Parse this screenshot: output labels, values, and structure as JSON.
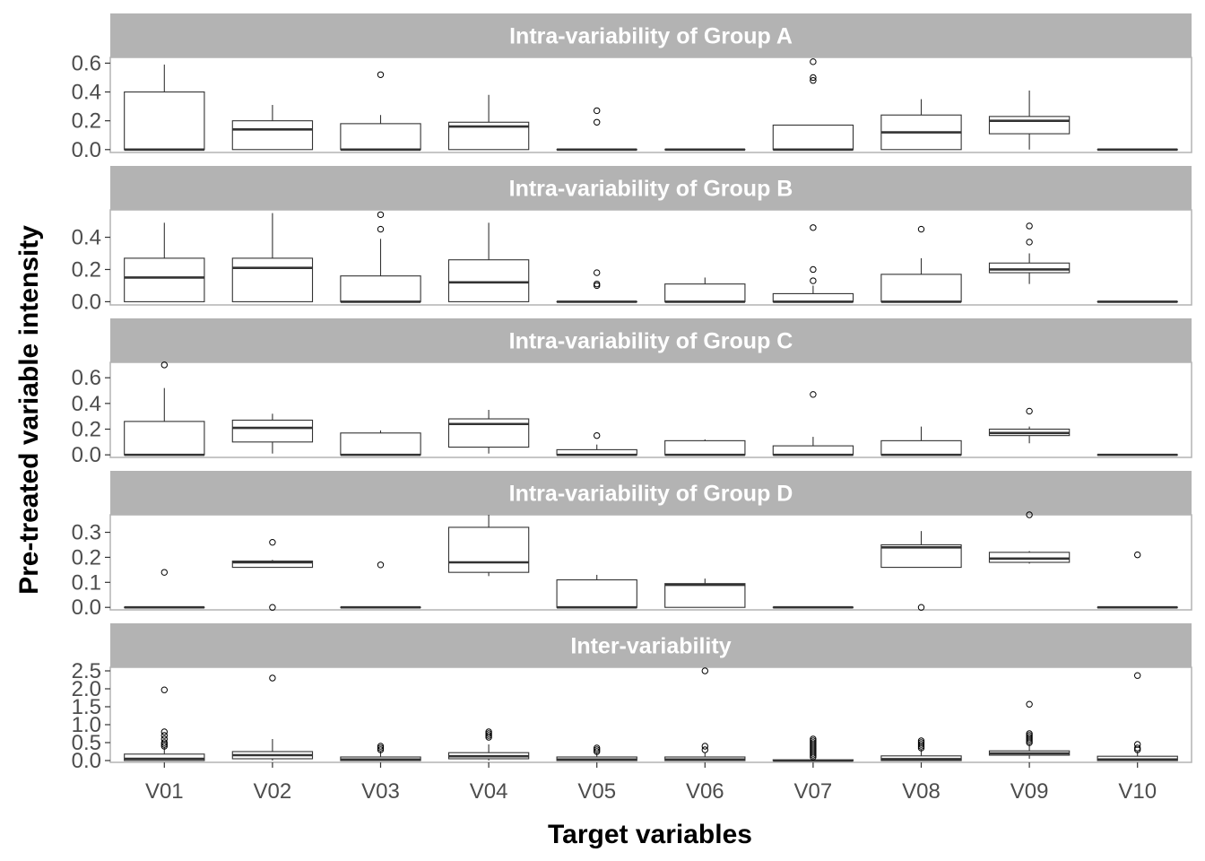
{
  "chart_data": {
    "type": "boxplot",
    "xlabel": "Target variables",
    "ylabel": "Pre-treated variable intensity",
    "categories": [
      "V01",
      "V02",
      "V03",
      "V04",
      "V05",
      "V06",
      "V07",
      "V08",
      "V09",
      "V10"
    ],
    "panels": [
      {
        "title": "Intra-variability of Group A",
        "ylim": [
          -0.02,
          0.64
        ],
        "yticks": [
          0.0,
          0.2,
          0.4,
          0.6
        ],
        "ytick_labels": [
          "0.0",
          "0.2",
          "0.4",
          "0.6"
        ],
        "boxes": [
          {
            "q1": 0.0,
            "median": 0.0,
            "q3": 0.4,
            "whisker_low": 0.0,
            "whisker_high": 0.59,
            "outliers": []
          },
          {
            "q1": 0.0,
            "median": 0.14,
            "q3": 0.2,
            "whisker_low": 0.0,
            "whisker_high": 0.31,
            "outliers": []
          },
          {
            "q1": 0.0,
            "median": 0.0,
            "q3": 0.18,
            "whisker_low": 0.0,
            "whisker_high": 0.24,
            "outliers": [
              0.52
            ]
          },
          {
            "q1": 0.0,
            "median": 0.16,
            "q3": 0.19,
            "whisker_low": 0.0,
            "whisker_high": 0.38,
            "outliers": []
          },
          {
            "q1": 0.0,
            "median": 0.0,
            "q3": 0.0,
            "whisker_low": 0.0,
            "whisker_high": 0.0,
            "outliers": [
              0.27,
              0.19
            ]
          },
          {
            "q1": 0.0,
            "median": 0.0,
            "q3": 0.0,
            "whisker_low": 0.0,
            "whisker_high": 0.0,
            "outliers": []
          },
          {
            "q1": 0.0,
            "median": 0.0,
            "q3": 0.17,
            "whisker_low": 0.0,
            "whisker_high": 0.17,
            "outliers": [
              0.61,
              0.5,
              0.48
            ]
          },
          {
            "q1": 0.0,
            "median": 0.12,
            "q3": 0.24,
            "whisker_low": 0.0,
            "whisker_high": 0.35,
            "outliers": []
          },
          {
            "q1": 0.11,
            "median": 0.2,
            "q3": 0.23,
            "whisker_low": 0.0,
            "whisker_high": 0.41,
            "outliers": []
          },
          {
            "q1": 0.0,
            "median": 0.0,
            "q3": 0.0,
            "whisker_low": 0.0,
            "whisker_high": 0.0,
            "outliers": []
          }
        ]
      },
      {
        "title": "Intra-variability of Group B",
        "ylim": [
          -0.02,
          0.57
        ],
        "yticks": [
          0.0,
          0.2,
          0.4
        ],
        "ytick_labels": [
          "0.0",
          "0.2",
          "0.4"
        ],
        "boxes": [
          {
            "q1": 0.0,
            "median": 0.15,
            "q3": 0.27,
            "whisker_low": 0.0,
            "whisker_high": 0.49,
            "outliers": []
          },
          {
            "q1": 0.0,
            "median": 0.21,
            "q3": 0.27,
            "whisker_low": 0.0,
            "whisker_high": 0.55,
            "outliers": []
          },
          {
            "q1": 0.0,
            "median": 0.0,
            "q3": 0.16,
            "whisker_low": 0.0,
            "whisker_high": 0.39,
            "outliers": [
              0.54,
              0.45
            ]
          },
          {
            "q1": 0.0,
            "median": 0.12,
            "q3": 0.26,
            "whisker_low": 0.0,
            "whisker_high": 0.49,
            "outliers": []
          },
          {
            "q1": 0.0,
            "median": 0.0,
            "q3": 0.0,
            "whisker_low": 0.0,
            "whisker_high": 0.0,
            "outliers": [
              0.18,
              0.11,
              0.1
            ]
          },
          {
            "q1": 0.0,
            "median": 0.0,
            "q3": 0.11,
            "whisker_low": 0.0,
            "whisker_high": 0.15,
            "outliers": []
          },
          {
            "q1": 0.0,
            "median": 0.0,
            "q3": 0.05,
            "whisker_low": 0.0,
            "whisker_high": 0.1,
            "outliers": [
              0.46,
              0.2,
              0.13
            ]
          },
          {
            "q1": 0.0,
            "median": 0.0,
            "q3": 0.17,
            "whisker_low": 0.0,
            "whisker_high": 0.27,
            "outliers": [
              0.45
            ]
          },
          {
            "q1": 0.18,
            "median": 0.2,
            "q3": 0.24,
            "whisker_low": 0.11,
            "whisker_high": 0.3,
            "outliers": [
              0.47,
              0.37
            ]
          },
          {
            "q1": 0.0,
            "median": 0.0,
            "q3": 0.0,
            "whisker_low": 0.0,
            "whisker_high": 0.0,
            "outliers": []
          }
        ]
      },
      {
        "title": "Intra-variability of Group C",
        "ylim": [
          -0.02,
          0.72
        ],
        "yticks": [
          0.0,
          0.2,
          0.4,
          0.6
        ],
        "ytick_labels": [
          "0.0",
          "0.2",
          "0.4",
          "0.6"
        ],
        "boxes": [
          {
            "q1": 0.0,
            "median": 0.0,
            "q3": 0.26,
            "whisker_low": 0.0,
            "whisker_high": 0.52,
            "outliers": [
              0.7
            ]
          },
          {
            "q1": 0.1,
            "median": 0.21,
            "q3": 0.27,
            "whisker_low": 0.01,
            "whisker_high": 0.32,
            "outliers": []
          },
          {
            "q1": 0.0,
            "median": 0.0,
            "q3": 0.17,
            "whisker_low": 0.0,
            "whisker_high": 0.19,
            "outliers": []
          },
          {
            "q1": 0.06,
            "median": 0.24,
            "q3": 0.28,
            "whisker_low": 0.01,
            "whisker_high": 0.35,
            "outliers": []
          },
          {
            "q1": 0.0,
            "median": 0.0,
            "q3": 0.04,
            "whisker_low": 0.0,
            "whisker_high": 0.08,
            "outliers": [
              0.15
            ]
          },
          {
            "q1": 0.0,
            "median": 0.0,
            "q3": 0.11,
            "whisker_low": 0.0,
            "whisker_high": 0.12,
            "outliers": []
          },
          {
            "q1": 0.0,
            "median": 0.0,
            "q3": 0.07,
            "whisker_low": 0.0,
            "whisker_high": 0.14,
            "outliers": [
              0.47
            ]
          },
          {
            "q1": 0.0,
            "median": 0.0,
            "q3": 0.11,
            "whisker_low": 0.0,
            "whisker_high": 0.22,
            "outliers": []
          },
          {
            "q1": 0.15,
            "median": 0.17,
            "q3": 0.2,
            "whisker_low": 0.09,
            "whisker_high": 0.22,
            "outliers": [
              0.34
            ]
          },
          {
            "q1": 0.0,
            "median": 0.0,
            "q3": 0.0,
            "whisker_low": 0.0,
            "whisker_high": 0.0,
            "outliers": []
          }
        ]
      },
      {
        "title": "Intra-variability of Group D",
        "ylim": [
          -0.01,
          0.37
        ],
        "yticks": [
          0.0,
          0.1,
          0.2,
          0.3
        ],
        "ytick_labels": [
          "0.0",
          "0.1",
          "0.2",
          "0.3"
        ],
        "boxes": [
          {
            "q1": 0.0,
            "median": 0.0,
            "q3": 0.0,
            "whisker_low": 0.0,
            "whisker_high": 0.0,
            "outliers": [
              0.14
            ]
          },
          {
            "q1": 0.16,
            "median": 0.18,
            "q3": 0.185,
            "whisker_low": 0.16,
            "whisker_high": 0.19,
            "outliers": [
              0.26,
              0.0
            ]
          },
          {
            "q1": 0.0,
            "median": 0.0,
            "q3": 0.0,
            "whisker_low": 0.0,
            "whisker_high": 0.0,
            "outliers": [
              0.17
            ]
          },
          {
            "q1": 0.14,
            "median": 0.18,
            "q3": 0.32,
            "whisker_low": 0.125,
            "whisker_high": 0.37,
            "outliers": []
          },
          {
            "q1": 0.0,
            "median": 0.0,
            "q3": 0.11,
            "whisker_low": 0.0,
            "whisker_high": 0.13,
            "outliers": []
          },
          {
            "q1": 0.0,
            "median": 0.09,
            "q3": 0.095,
            "whisker_low": 0.0,
            "whisker_high": 0.115,
            "outliers": []
          },
          {
            "q1": 0.0,
            "median": 0.0,
            "q3": 0.0,
            "whisker_low": 0.0,
            "whisker_high": 0.0,
            "outliers": []
          },
          {
            "q1": 0.16,
            "median": 0.24,
            "q3": 0.25,
            "whisker_low": 0.16,
            "whisker_high": 0.305,
            "outliers": [
              0.0
            ]
          },
          {
            "q1": 0.18,
            "median": 0.195,
            "q3": 0.22,
            "whisker_low": 0.175,
            "whisker_high": 0.225,
            "outliers": [
              0.37
            ]
          },
          {
            "q1": 0.0,
            "median": 0.0,
            "q3": 0.0,
            "whisker_low": 0.0,
            "whisker_high": 0.0,
            "outliers": [
              0.21
            ]
          }
        ]
      },
      {
        "title": "Inter-variability",
        "ylim": [
          -0.05,
          2.6
        ],
        "yticks": [
          0.0,
          0.5,
          1.0,
          1.5,
          2.0,
          2.5
        ],
        "ytick_labels": [
          "0.0",
          "0.5",
          "1.0",
          "1.5",
          "2.0",
          "2.5"
        ],
        "boxes": [
          {
            "q1": 0.0,
            "median": 0.05,
            "q3": 0.18,
            "whisker_low": 0.0,
            "whisker_high": 0.38,
            "outliers": [
              1.97,
              0.8,
              0.7,
              0.6,
              0.5,
              0.45,
              0.4
            ]
          },
          {
            "q1": 0.05,
            "median": 0.15,
            "q3": 0.25,
            "whisker_low": 0.0,
            "whisker_high": 0.6,
            "outliers": [
              2.3
            ]
          },
          {
            "q1": 0.0,
            "median": 0.03,
            "q3": 0.1,
            "whisker_low": 0.0,
            "whisker_high": 0.25,
            "outliers": [
              0.4,
              0.35,
              0.3
            ]
          },
          {
            "q1": 0.05,
            "median": 0.12,
            "q3": 0.22,
            "whisker_low": 0.0,
            "whisker_high": 0.45,
            "outliers": [
              0.8,
              0.75,
              0.7,
              0.65
            ]
          },
          {
            "q1": 0.0,
            "median": 0.03,
            "q3": 0.1,
            "whisker_low": 0.0,
            "whisker_high": 0.22,
            "outliers": [
              0.35,
              0.3,
              0.25
            ]
          },
          {
            "q1": 0.0,
            "median": 0.03,
            "q3": 0.1,
            "whisker_low": 0.0,
            "whisker_high": 0.22,
            "outliers": [
              2.5,
              0.4,
              0.3
            ]
          },
          {
            "q1": 0.0,
            "median": 0.0,
            "q3": 0.02,
            "whisker_low": 0.0,
            "whisker_high": 0.05,
            "outliers": [
              0.6,
              0.55,
              0.5,
              0.45,
              0.4,
              0.35,
              0.3,
              0.25,
              0.2,
              0.15,
              0.1
            ]
          },
          {
            "q1": 0.0,
            "median": 0.04,
            "q3": 0.13,
            "whisker_low": 0.0,
            "whisker_high": 0.3,
            "outliers": [
              0.55,
              0.5,
              0.45,
              0.4,
              0.35
            ]
          },
          {
            "q1": 0.15,
            "median": 0.2,
            "q3": 0.27,
            "whisker_low": 0.05,
            "whisker_high": 0.45,
            "outliers": [
              1.57,
              0.75,
              0.7,
              0.65,
              0.6,
              0.55,
              0.5
            ]
          },
          {
            "q1": 0.0,
            "median": 0.03,
            "q3": 0.12,
            "whisker_low": 0.0,
            "whisker_high": 0.25,
            "outliers": [
              2.37,
              0.45,
              0.35,
              0.3
            ]
          }
        ]
      }
    ],
    "grid": false,
    "legend": "none",
    "colors": {
      "strip_fill": "#b3b3b3",
      "strip_text": "#ffffff",
      "box_stroke": "#333333",
      "panel_border": "#b3b3b3",
      "tick_text": "#4d4d4d"
    }
  }
}
